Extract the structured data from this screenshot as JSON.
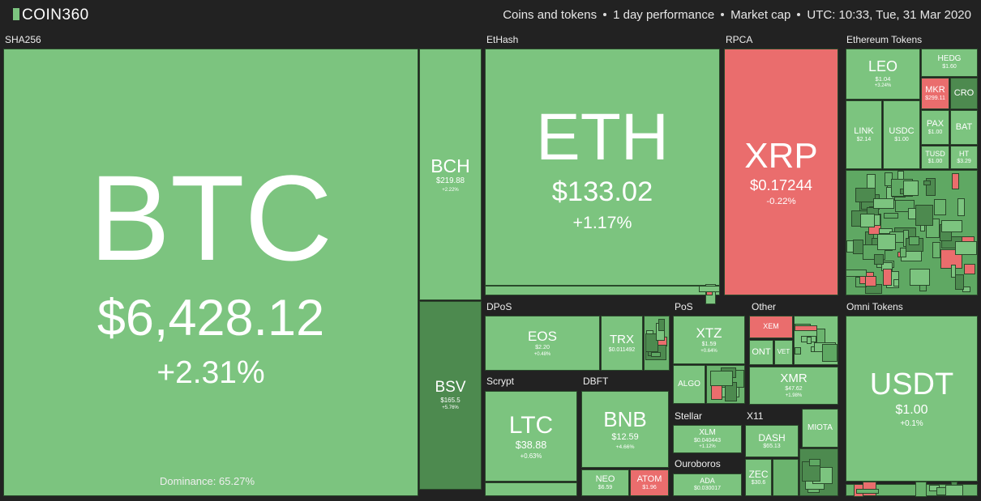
{
  "header": {
    "logo": "COIN360",
    "filters": [
      "Coins and tokens",
      "1 day performance",
      "Market cap",
      "UTC: 10:33, Tue, 31 Mar 2020"
    ]
  },
  "btc_dominance": "Dominance: 65.27%",
  "groups": [
    {
      "label": "SHA256",
      "tiles": [
        {
          "symbol": "BTC",
          "price": "$6,428.12",
          "change": "+2.31%",
          "color": "#7cc47f"
        },
        {
          "symbol": "BCH",
          "price": "$219.88",
          "change": "+2.22%",
          "color": "#7cc47f"
        },
        {
          "symbol": "BSV",
          "price": "$165.5",
          "change": "+5.76%",
          "color": "#4d8a4f"
        }
      ]
    },
    {
      "label": "EtHash",
      "tiles": [
        {
          "symbol": "ETH",
          "price": "$133.02",
          "change": "+1.17%",
          "color": "#7cc47f"
        }
      ]
    },
    {
      "label": "RPCA",
      "tiles": [
        {
          "symbol": "XRP",
          "price": "$0.17244",
          "change": "-0.22%",
          "color": "#ea6d6d"
        }
      ]
    },
    {
      "label": "Ethereum Tokens",
      "tiles": [
        {
          "symbol": "LEO",
          "price": "$1.04",
          "change": "+3.24%",
          "color": "#7cc47f"
        },
        {
          "symbol": "HEDG",
          "price": "$1.60",
          "color": "#7cc47f"
        },
        {
          "symbol": "MKR",
          "price": "$299.11",
          "color": "#ea6d6d"
        },
        {
          "symbol": "CRO",
          "color": "#4d8a4f"
        },
        {
          "symbol": "LINK",
          "price": "$2.14",
          "color": "#7cc47f"
        },
        {
          "symbol": "USDC",
          "price": "$1.00",
          "color": "#7cc47f"
        },
        {
          "symbol": "PAX",
          "price": "$1.00",
          "color": "#7cc47f"
        },
        {
          "symbol": "BAT",
          "color": "#7cc47f"
        },
        {
          "symbol": "TUSD",
          "price": "$1.00",
          "color": "#7cc47f"
        },
        {
          "symbol": "HT",
          "price": "$3.29",
          "color": "#7cc47f"
        }
      ]
    },
    {
      "label": "DPoS",
      "tiles": [
        {
          "symbol": "EOS",
          "price": "$2.20",
          "change": "+0.48%",
          "color": "#7cc47f"
        },
        {
          "symbol": "TRX",
          "price": "$0.011492",
          "color": "#7cc47f"
        }
      ]
    },
    {
      "label": "PoS",
      "tiles": [
        {
          "symbol": "XTZ",
          "price": "$1.59",
          "change": "+0.64%",
          "color": "#7cc47f"
        },
        {
          "symbol": "ALGO",
          "color": "#7cc47f"
        }
      ]
    },
    {
      "label": "Other",
      "tiles": [
        {
          "symbol": "XEM",
          "color": "#ea6d6d"
        },
        {
          "symbol": "ONT",
          "color": "#7cc47f"
        },
        {
          "symbol": "VET",
          "color": "#7cc47f"
        },
        {
          "symbol": "XMR",
          "price": "$47.62",
          "change": "+1.98%",
          "color": "#7cc47f"
        },
        {
          "symbol": "MIOTA",
          "color": "#7cc47f"
        }
      ]
    },
    {
      "label": "Omni Tokens",
      "tiles": [
        {
          "symbol": "USDT",
          "price": "$1.00",
          "change": "+0.1%",
          "color": "#7cc47f"
        }
      ]
    },
    {
      "label": "Scrypt",
      "tiles": [
        {
          "symbol": "LTC",
          "price": "$38.88",
          "change": "+0.63%",
          "color": "#7cc47f"
        }
      ]
    },
    {
      "label": "DBFT",
      "tiles": [
        {
          "symbol": "BNB",
          "price": "$12.59",
          "change": "+4.66%",
          "color": "#7cc47f"
        },
        {
          "symbol": "NEO",
          "price": "$6.59",
          "color": "#7cc47f"
        },
        {
          "symbol": "ATOM",
          "price": "$1.96",
          "color": "#ea6d6d"
        }
      ]
    },
    {
      "label": "Stellar",
      "tiles": [
        {
          "symbol": "XLM",
          "price": "$0.040443",
          "change": "+1.12%",
          "color": "#7cc47f"
        }
      ]
    },
    {
      "label": "X11",
      "tiles": [
        {
          "symbol": "DASH",
          "price": "$65.13",
          "color": "#7cc47f"
        },
        {
          "symbol": "ZEC",
          "price": "$30.6",
          "color": "#7cc47f"
        }
      ]
    },
    {
      "label": "Ouroboros",
      "tiles": [
        {
          "symbol": "ADA",
          "price": "$0.030017",
          "color": "#7cc47f"
        }
      ]
    }
  ]
}
